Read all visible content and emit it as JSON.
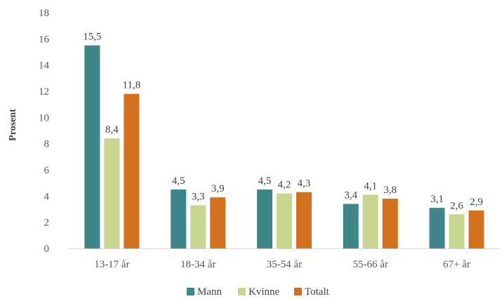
{
  "chart_data": {
    "type": "bar",
    "title": "",
    "xlabel": "",
    "ylabel": "Prosent",
    "ylim": [
      0,
      18
    ],
    "yticks": [
      0,
      2,
      4,
      6,
      8,
      10,
      12,
      14,
      16,
      18
    ],
    "categories": [
      "13-17 år",
      "18-34 år",
      "35-54 år",
      "55-66 år",
      "67+ år"
    ],
    "series": [
      {
        "name": "Mann",
        "color": "#3f868a",
        "values": [
          15.5,
          4.5,
          4.5,
          3.4,
          3.1
        ],
        "labels": [
          "15,5",
          "4,5",
          "4,5",
          "3,4",
          "3,1"
        ]
      },
      {
        "name": "Kvinne",
        "color": "#c7d58f",
        "values": [
          8.4,
          3.3,
          4.2,
          4.1,
          2.6
        ],
        "labels": [
          "8,4",
          "3,3",
          "4,2",
          "4,1",
          "2,6"
        ]
      },
      {
        "name": "Totalt",
        "color": "#d3711f",
        "values": [
          11.8,
          3.9,
          4.3,
          3.8,
          2.9
        ],
        "labels": [
          "11,8",
          "3,9",
          "4,3",
          "3,8",
          "2,9"
        ]
      }
    ],
    "grid": false,
    "legend_position": "bottom"
  }
}
